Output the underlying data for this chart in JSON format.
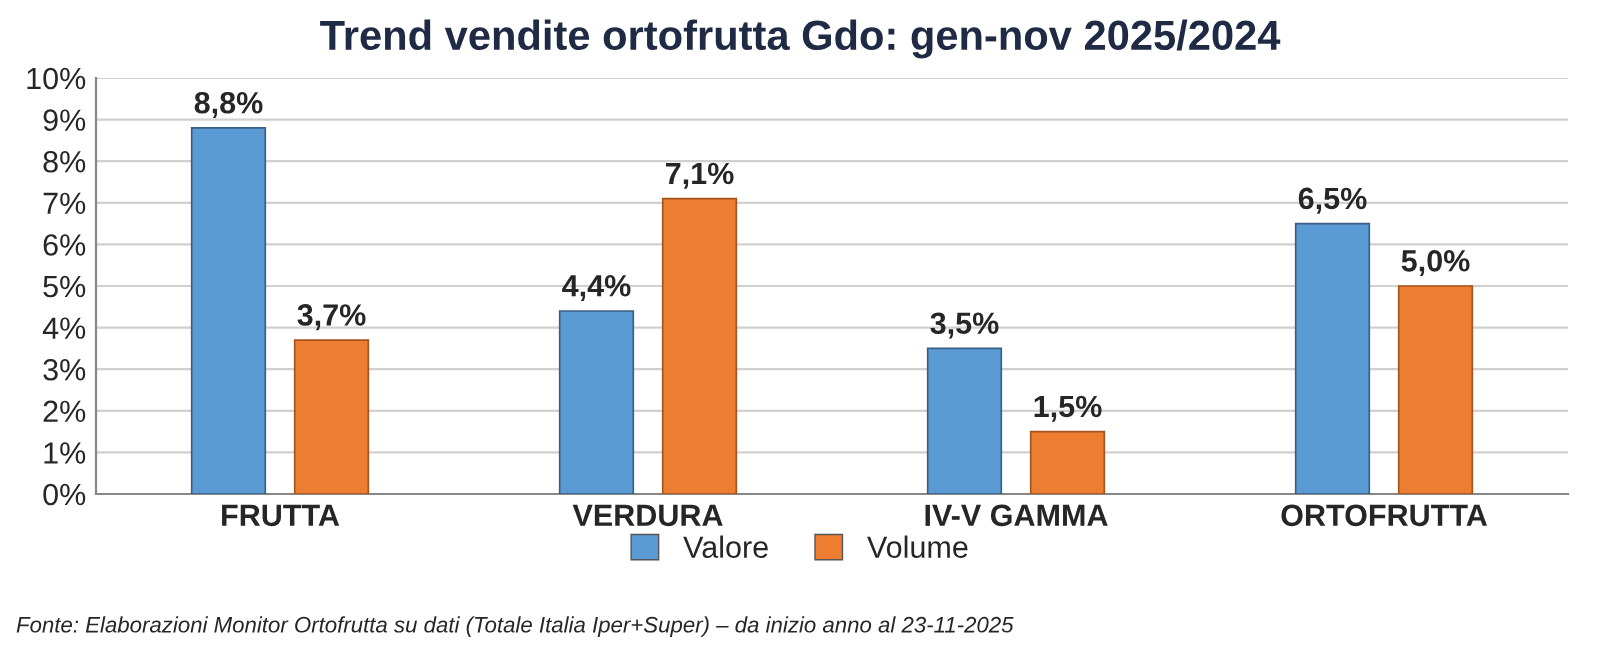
{
  "chart_data": {
    "type": "bar",
    "title": "Trend vendite ortofrutta Gdo: gen-nov 2025/2024",
    "categories": [
      "FRUTTA",
      "VERDURA",
      "IV-V GAMMA",
      "ORTOFRUTTA"
    ],
    "series": [
      {
        "name": "Valore",
        "color": "#5b9bd5",
        "values": [
          8.8,
          4.4,
          3.5,
          6.5
        ],
        "value_labels": [
          "8,8%",
          "4,4%",
          "3,5%",
          "6,5%"
        ]
      },
      {
        "name": "Volume",
        "color": "#ed7d31",
        "values": [
          3.7,
          7.1,
          1.5,
          5.0
        ],
        "value_labels": [
          "3,7%",
          "7,1%",
          "1,5%",
          "5,0%"
        ]
      }
    ],
    "ylim": [
      0,
      10
    ],
    "yticks": [
      {
        "value": 0,
        "label": "0%"
      },
      {
        "value": 1,
        "label": "1%"
      },
      {
        "value": 2,
        "label": "2%"
      },
      {
        "value": 3,
        "label": "3%"
      },
      {
        "value": 4,
        "label": "4%"
      },
      {
        "value": 5,
        "label": "5%"
      },
      {
        "value": 6,
        "label": "6%"
      },
      {
        "value": 7,
        "label": "7%"
      },
      {
        "value": 8,
        "label": "8%"
      },
      {
        "value": 9,
        "label": "9%"
      },
      {
        "value": 10,
        "label": "10%"
      }
    ],
    "grid": "y",
    "legend": "bottom",
    "annotations": [
      "Fonte: Elaborazioni Monitor Ortofrutta su dati (Totale Italia Iper+Super) – da inizio anno al 23-11-2025"
    ]
  }
}
